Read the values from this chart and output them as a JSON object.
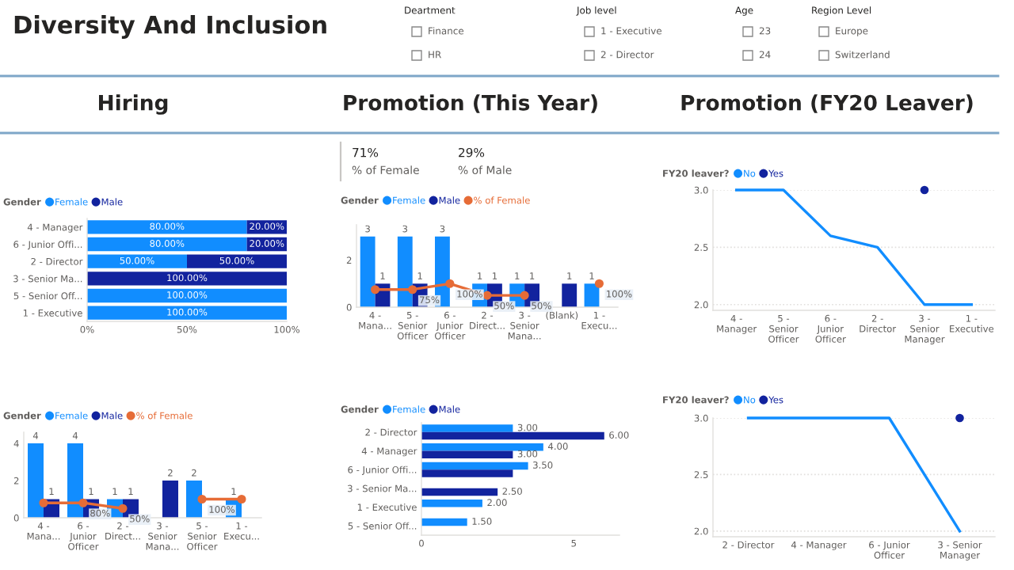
{
  "chart_data": [
    {
      "type": "other",
      "title": "Diversity And Inclusion",
      "annotations": [
        "Deartment",
        "Finance",
        "HR",
        "Job level",
        "1 - Executive",
        "2 - Director",
        "Age",
        "23",
        "24",
        "Region Level",
        "Europe",
        "Switzerland"
      ]
    },
    {
      "type": "bar",
      "title": "Hiring",
      "orientation": "horizontal",
      "stacked": true,
      "legend_title": "Gender",
      "legend": "top left",
      "grid": false,
      "categories": [
        "4 - Manager",
        "6 - Junior Offi...",
        "2 - Director",
        "3 - Senior Ma...",
        "5 - Senior Off...",
        "1 - Executive"
      ],
      "xlim": [
        0,
        100
      ],
      "xticks": [
        {
          "value": 0,
          "label": "0%"
        },
        {
          "value": 50,
          "label": "50%"
        },
        {
          "value": 100,
          "label": "100%"
        }
      ],
      "series": [
        {
          "name": "Female",
          "color": "#118dff",
          "values": [
            80,
            80,
            50,
            null,
            100,
            100
          ],
          "value_labels": [
            "80.00%",
            "80.00%",
            "50.00%",
            null,
            "100.00%",
            "100.00%"
          ]
        },
        {
          "name": "Male",
          "color": "#12239e",
          "values": [
            20,
            20,
            50,
            100,
            null,
            null
          ],
          "value_labels": [
            "20.00%",
            "20.00%",
            "50.00%",
            "100.00%",
            null,
            null
          ]
        }
      ]
    },
    {
      "type": "bar",
      "legend_title": "Gender",
      "legend": "top left",
      "grid": false,
      "categories": [
        "4 - Mana...",
        "6 - Junior Officer",
        "2 - Direct...",
        "3 - Senior Mana...",
        "5 - Senior Officer",
        "1 - Execu..."
      ],
      "ylim": [
        0,
        4.6
      ],
      "yticks": [
        0,
        2,
        4
      ],
      "y2lim": [
        0,
        460
      ],
      "series": [
        {
          "name": "Female",
          "color": "#118dff",
          "values": [
            4,
            4,
            1,
            null,
            2,
            1
          ],
          "value_labels": [
            "4",
            "4",
            "1",
            null,
            "2",
            "1"
          ]
        },
        {
          "name": "Male",
          "color": "#12239e",
          "values": [
            1,
            1,
            1,
            2,
            null,
            null
          ],
          "value_labels": [
            "1",
            "1",
            "1",
            "2",
            null,
            null
          ]
        },
        {
          "name": "% of Female",
          "type": "line",
          "axis": "y2",
          "marker": "circle",
          "color": "#e66c37",
          "values": [
            80,
            80,
            50,
            null,
            100,
            100
          ],
          "value_labels": [
            null,
            "80%",
            "50%",
            null,
            "100%",
            null
          ]
        }
      ]
    },
    {
      "type": "other",
      "title": "Promotion (This Year)",
      "annotations": [
        "71%",
        "% of Female",
        "29%",
        "% of Male"
      ]
    },
    {
      "type": "bar",
      "legend_title": "Gender",
      "legend": "top left",
      "grid": false,
      "categories": [
        "4 - Mana...",
        "5 - Senior Officer",
        "6 - Junior Officer",
        "2 - Direct...",
        "3 - Senior Mana...",
        "(Blank)",
        "1 - Execu..."
      ],
      "ylim": [
        0,
        3.5
      ],
      "yticks": [
        0,
        2
      ],
      "y2lim": [
        0,
        350
      ],
      "series": [
        {
          "name": "Female",
          "color": "#118dff",
          "values": [
            3,
            3,
            3,
            1,
            1,
            null,
            1
          ],
          "value_labels": [
            "3",
            "3",
            "3",
            "1",
            "1",
            null,
            "1"
          ]
        },
        {
          "name": "Male",
          "color": "#12239e",
          "values": [
            1,
            1,
            null,
            1,
            1,
            1,
            null
          ],
          "value_labels": [
            "1",
            "1",
            null,
            "1",
            "1",
            "1",
            null
          ]
        },
        {
          "name": "% of Female",
          "type": "line",
          "axis": "y2",
          "marker": "circle",
          "color": "#e66c37",
          "values": [
            75,
            75,
            100,
            50,
            50,
            null,
            100
          ],
          "value_labels": [
            null,
            "75%",
            "100%",
            "50%",
            "50%",
            null,
            "100%"
          ]
        }
      ]
    },
    {
      "type": "bar",
      "orientation": "horizontal",
      "legend_title": "Gender",
      "legend": "top left",
      "grid": false,
      "categories": [
        "2 - Director",
        "4 - Manager",
        "6 - Junior Offi...",
        "3 - Senior Ma...",
        "1 - Executive",
        "5 - Senior Off..."
      ],
      "xlim": [
        0,
        6.5
      ],
      "xticks": [
        0,
        5
      ],
      "series": [
        {
          "name": "Female",
          "color": "#118dff",
          "values": [
            3,
            4,
            3.5,
            null,
            2,
            1.5
          ],
          "value_labels": [
            "3.00",
            "4.00",
            "3.50",
            null,
            "2.00",
            "1.50"
          ]
        },
        {
          "name": "Male",
          "color": "#12239e",
          "values": [
            6,
            3,
            3,
            2.5,
            null,
            null
          ],
          "value_labels": [
            "6.00",
            "3.00",
            null,
            "2.50",
            null,
            null
          ]
        }
      ]
    },
    {
      "type": "line",
      "title": "Promotion (FY20 Leaver)",
      "legend_title": "FY20 leaver?",
      "legend": "top left",
      "grid": "y",
      "categories": [
        "4 - Manager",
        "5 - Senior Officer",
        "6 - Junior Officer",
        "2 - Director",
        "3 - Senior Manager",
        "1 - Executive"
      ],
      "ylim": [
        1.95,
        3
      ],
      "yticks": [
        {
          "value": 2,
          "label": "2.0"
        },
        {
          "value": 2.5,
          "label": "2.5"
        },
        {
          "value": 3,
          "label": "3.0"
        }
      ],
      "series": [
        {
          "name": "No",
          "color": "#118dff",
          "values": [
            3,
            3,
            2.6,
            2.5,
            2,
            2
          ]
        },
        {
          "name": "Yes",
          "type": "scatter",
          "marker": "circle",
          "color": "#12239e",
          "values": [
            null,
            null,
            null,
            null,
            3,
            null
          ]
        }
      ]
    },
    {
      "type": "line",
      "legend_title": "FY20 leaver?",
      "legend": "top left",
      "grid": "y",
      "categories": [
        "2 - Director",
        "4 - Manager",
        "6 - Junior Officer",
        "3 - Senior Manager"
      ],
      "ylim": [
        1.95,
        3
      ],
      "yticks": [
        {
          "value": 2,
          "label": "2.0"
        },
        {
          "value": 2.5,
          "label": "2.5"
        },
        {
          "value": 3,
          "label": "3.0"
        }
      ],
      "series": [
        {
          "name": "No",
          "color": "#118dff",
          "values": [
            3,
            3,
            3,
            2
          ]
        },
        {
          "name": "Yes",
          "type": "scatter",
          "marker": "circle",
          "color": "#12239e",
          "values": [
            null,
            null,
            null,
            3
          ]
        }
      ]
    }
  ]
}
